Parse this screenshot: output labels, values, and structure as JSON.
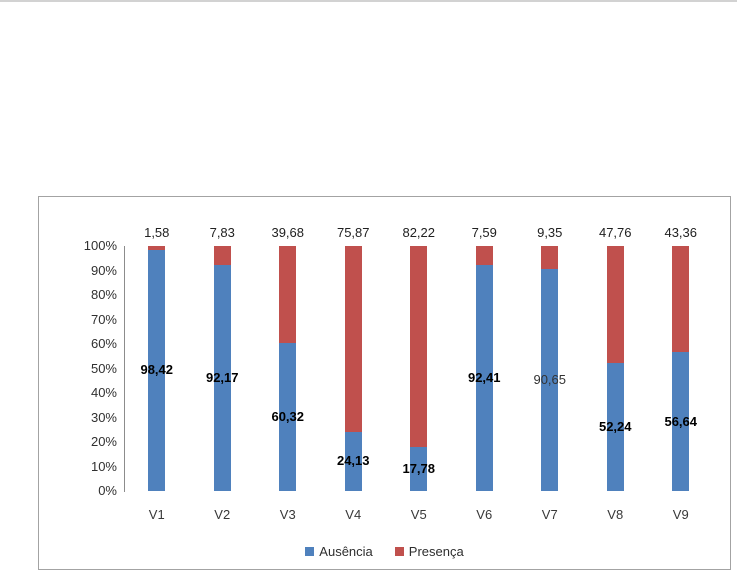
{
  "chart_data": {
    "type": "bar",
    "subtype": "stacked-100-percent",
    "categories": [
      "V1",
      "V2",
      "V3",
      "V4",
      "V5",
      "V6",
      "V7",
      "V8",
      "V9"
    ],
    "series": [
      {
        "name": "Ausência",
        "color": "#4F81BD",
        "values": [
          98.42,
          92.17,
          60.32,
          24.13,
          17.78,
          92.41,
          90.65,
          52.24,
          56.64
        ],
        "labels": [
          "98,42",
          "92,17",
          "60,32",
          "24,13",
          "17,78",
          "92,41",
          "90,65",
          "52,24",
          "56,64"
        ],
        "label_bold": [
          true,
          true,
          true,
          true,
          true,
          true,
          false,
          true,
          true
        ],
        "label_position": "center-of-segment"
      },
      {
        "name": "Presença",
        "color": "#C0504D",
        "values": [
          1.58,
          7.83,
          39.68,
          75.87,
          82.22,
          7.59,
          9.35,
          47.76,
          43.36
        ],
        "labels": [
          "1,58",
          "7,83",
          "39,68",
          "75,87",
          "82,22",
          "7,59",
          "9,35",
          "47,76",
          "43,36"
        ],
        "label_position": "above-bar"
      }
    ],
    "y_ticks": [
      "100%",
      "90%",
      "80%",
      "70%",
      "60%",
      "50%",
      "40%",
      "30%",
      "20%",
      "10%",
      "0%"
    ],
    "ylim": [
      0,
      100
    ],
    "title": "",
    "xlabel": "",
    "ylabel": "",
    "grid": false,
    "legend_position": "bottom",
    "colors": {
      "axis_line": "#8c8c8c",
      "chart_border": "#a3a3a3",
      "ausencia": "#4F81BD",
      "presenca": "#C0504D"
    }
  }
}
